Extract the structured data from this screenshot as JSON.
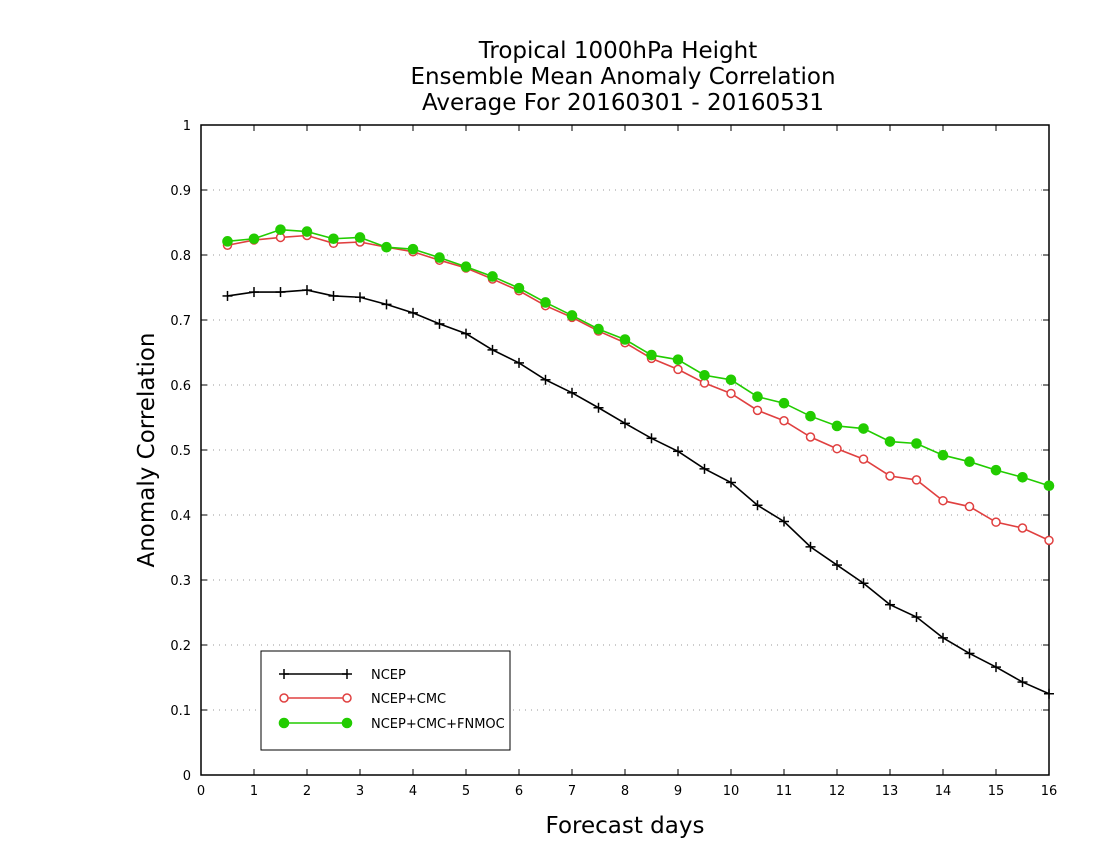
{
  "chart_data": {
    "type": "line",
    "title_lines": [
      "Tropical 1000hPa Height",
      "Ensemble Mean Anomaly Correlation",
      "Average For 20160301 - 20160531"
    ],
    "xlabel": "Forecast days",
    "ylabel": "Anomaly Correlation",
    "xlim": [
      0,
      16
    ],
    "ylim": [
      0,
      1
    ],
    "x_ticks": [
      "0",
      "1",
      "2",
      "3",
      "4",
      "5",
      "6",
      "7",
      "8",
      "9",
      "10",
      "11",
      "12",
      "13",
      "14",
      "15",
      "16"
    ],
    "y_ticks": [
      "0",
      "0.1",
      "0.2",
      "0.3",
      "0.4",
      "0.5",
      "0.6",
      "0.7",
      "0.8",
      "0.9",
      "1"
    ],
    "grid": "horizontal dotted",
    "legend_position": "bottom-left",
    "x": [
      0.5,
      1,
      1.5,
      2,
      2.5,
      3,
      3.5,
      4,
      4.5,
      5,
      5.5,
      6,
      6.5,
      7,
      7.5,
      8,
      8.5,
      9,
      9.5,
      10,
      10.5,
      11,
      11.5,
      12,
      12.5,
      13,
      13.5,
      14,
      14.5,
      15,
      15.5,
      16
    ],
    "series": [
      {
        "name": "NCEP",
        "color": "#000000",
        "marker": "plus",
        "values": [
          0.737,
          0.743,
          0.743,
          0.746,
          0.737,
          0.735,
          0.724,
          0.711,
          0.694,
          0.679,
          0.654,
          0.634,
          0.608,
          0.588,
          0.565,
          0.541,
          0.518,
          0.498,
          0.471,
          0.45,
          0.415,
          0.39,
          0.351,
          0.323,
          0.295,
          0.262,
          0.243,
          0.211,
          0.187,
          0.166,
          0.143,
          0.125
        ]
      },
      {
        "name": "NCEP+CMC",
        "color": "#e04040",
        "marker": "open-circle",
        "values": [
          0.815,
          0.823,
          0.827,
          0.83,
          0.818,
          0.82,
          0.812,
          0.805,
          0.792,
          0.78,
          0.763,
          0.745,
          0.722,
          0.704,
          0.683,
          0.665,
          0.641,
          0.624,
          0.603,
          0.587,
          0.561,
          0.545,
          0.52,
          0.502,
          0.486,
          0.46,
          0.454,
          0.422,
          0.413,
          0.389,
          0.38,
          0.361
        ]
      },
      {
        "name": "NCEP+CMC+FNMOC",
        "color": "#22cc00",
        "marker": "filled-circle",
        "values": [
          0.821,
          0.825,
          0.839,
          0.836,
          0.825,
          0.827,
          0.812,
          0.809,
          0.796,
          0.782,
          0.767,
          0.749,
          0.727,
          0.707,
          0.686,
          0.67,
          0.646,
          0.639,
          0.615,
          0.608,
          0.582,
          0.572,
          0.552,
          0.537,
          0.533,
          0.513,
          0.51,
          0.492,
          0.482,
          0.469,
          0.458,
          0.445
        ]
      }
    ]
  }
}
